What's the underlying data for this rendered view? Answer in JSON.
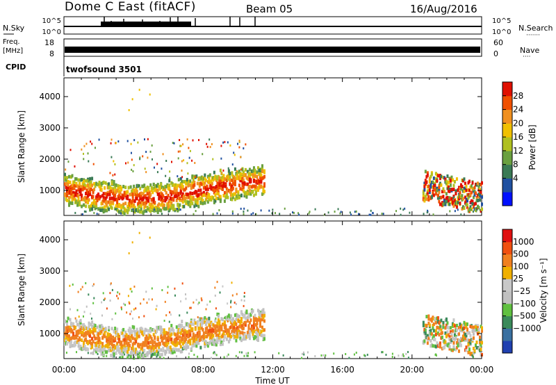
{
  "header": {
    "station": "Dome C East (fitACF)",
    "beam": "Beam 05",
    "date": "16/Aug/2016"
  },
  "strips": {
    "nsky_label": "N.Sky",
    "nsky_ticks": [
      "10^5",
      "10^0"
    ],
    "nsearch_label": "N.Search",
    "nsearch_ticks": [
      "10^5",
      "10^0"
    ],
    "freq_label": "Freq.",
    "freq_unit": "[MHz]",
    "freq_ticks": [
      "18",
      "8"
    ],
    "nave_label": "Nave",
    "nave_ticks": [
      "60",
      "0"
    ],
    "cpid_label": "CPID",
    "cpid_value": "twofsound 3501"
  },
  "chart_data": [
    {
      "type": "heatmap",
      "name": "power",
      "ylabel": "Slant Range [km]",
      "ylim": [
        200,
        4600
      ],
      "yticks": [
        "1000",
        "2000",
        "3000",
        "4000"
      ],
      "xlim": [
        0,
        24
      ],
      "colorbar": {
        "label": "Power [dB]",
        "ticks": [
          "4",
          "8",
          "12",
          "16",
          "20",
          "24",
          "28"
        ],
        "colors": [
          "#0010ff",
          "#2050a0",
          "#3a7a55",
          "#6aa040",
          "#b0c020",
          "#f0c000",
          "#f09020",
          "#f05000",
          "#e01000"
        ]
      }
    },
    {
      "type": "heatmap",
      "name": "velocity",
      "ylabel": "Slant Range [km]",
      "ylim": [
        200,
        4600
      ],
      "yticks": [
        "1000",
        "2000",
        "3000",
        "4000"
      ],
      "xlim": [
        0,
        24
      ],
      "colorbar": {
        "label": "Velocity [m s⁻¹]",
        "ticks": [
          "1000",
          "500",
          "100",
          "25",
          "−25",
          "−100",
          "−500",
          "−1000"
        ],
        "colors": [
          "#2040b0",
          "#3a70a0",
          "#3a8a5a",
          "#60c040",
          "#c0c0c0",
          "#c8c8c8",
          "#f0b000",
          "#f08020",
          "#f05010",
          "#e01010"
        ]
      }
    }
  ],
  "xaxis": {
    "ticks": [
      "00:00",
      "04:00",
      "08:00",
      "12:00",
      "16:00",
      "20:00",
      "00:00"
    ],
    "label": "Time UT"
  }
}
